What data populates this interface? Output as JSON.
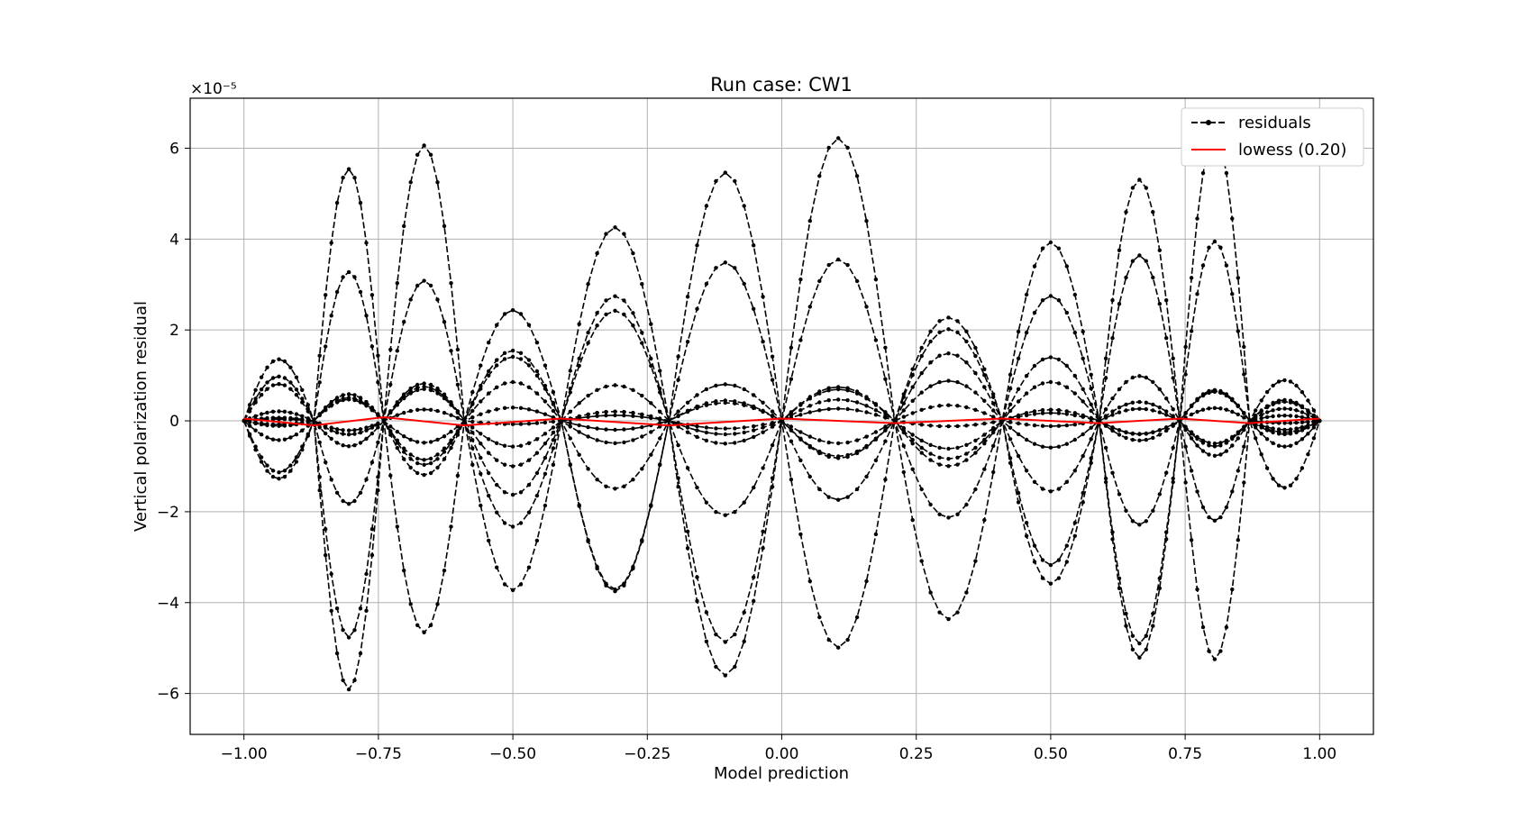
{
  "chart_data": {
    "type": "line",
    "title": "Run case: CW1",
    "xlabel": "Model prediction",
    "ylabel": "Vertical polarization residual",
    "y_offset_label": "×10⁻⁵",
    "y_scale_exponent": -5,
    "xlim": [
      -1.1,
      1.1
    ],
    "ylim": [
      -6.9,
      7.1
    ],
    "x_ticks": [
      -1.0,
      -0.75,
      -0.5,
      -0.25,
      0.0,
      0.25,
      0.5,
      0.75,
      1.0
    ],
    "x_tick_labels": [
      "−1.00",
      "−0.75",
      "−0.50",
      "−0.25",
      "0.00",
      "0.25",
      "0.50",
      "0.75",
      "1.00"
    ],
    "y_ticks": [
      -6,
      -4,
      -2,
      0,
      2,
      4,
      6
    ],
    "y_tick_labels": [
      "−6",
      "−4",
      "−2",
      "0",
      "2",
      "4",
      "6"
    ],
    "grid": true,
    "legend_position": "top-right",
    "colors": {
      "residuals": "#000000",
      "lowess": "#ff0000",
      "grid": "#b0b0b0"
    },
    "residual_series_amplitudes": [
      6.3,
      5.55,
      4.9,
      3.8,
      2.75,
      1.6,
      1.0,
      0.9,
      0.7,
      0.5,
      0.3
    ],
    "residual_series_phases": [
      0,
      0.35,
      0.7,
      1.05,
      1.4,
      1.75,
      2.1,
      2.45,
      2.8,
      3.15,
      3.5
    ],
    "residual_zero_crossings_x": [
      -1.0,
      -0.87,
      -0.74,
      -0.59,
      -0.41,
      -0.21,
      0.0,
      0.21,
      0.41,
      0.59,
      0.74,
      0.87,
      1.0
    ],
    "series": [
      {
        "name": "lowess (0.20)",
        "x": [
          -1.0,
          -0.87,
          -0.74,
          -0.59,
          -0.41,
          -0.21,
          0.0,
          0.21,
          0.41,
          0.59,
          0.74,
          0.87,
          1.0
        ],
        "y": [
          0.05,
          -0.1,
          0.08,
          -0.1,
          0.05,
          -0.1,
          0.05,
          -0.05,
          0.05,
          -0.05,
          0.05,
          -0.05,
          0.05
        ]
      }
    ],
    "legend": [
      {
        "name": "residuals",
        "style": "dashed-marker"
      },
      {
        "name": "lowess (0.20)",
        "style": "solid"
      }
    ]
  }
}
